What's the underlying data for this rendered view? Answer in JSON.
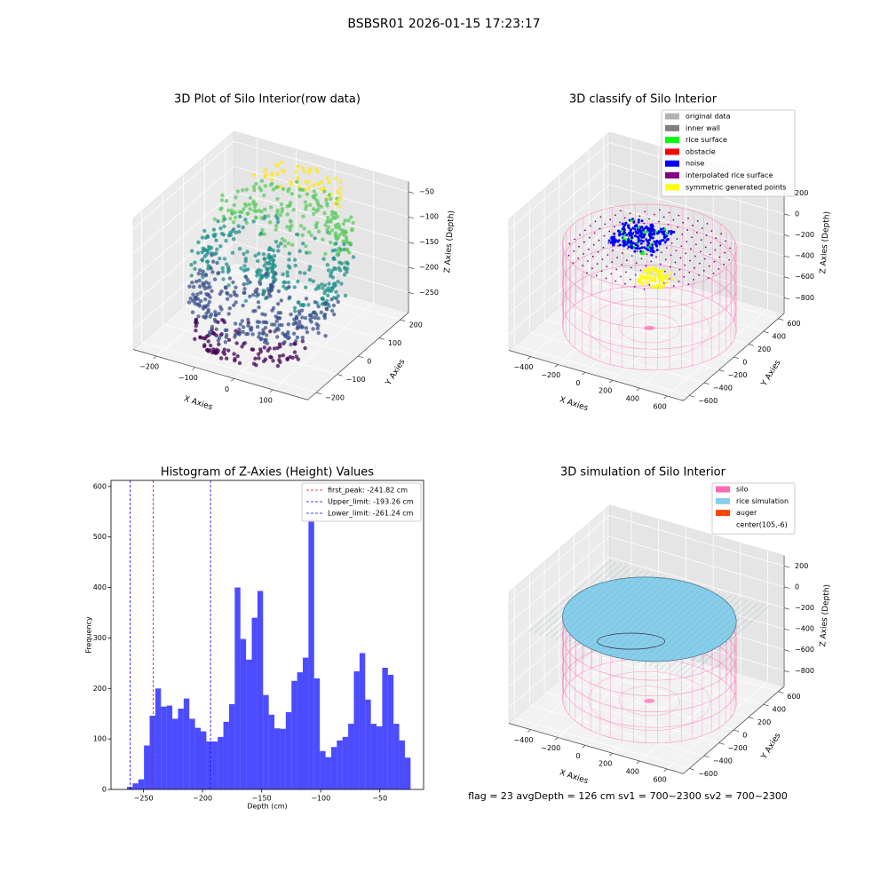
{
  "title": "BSBSR01 2026-01-15 17:23:17",
  "footer": "flag = 23  avgDepth = 126 cm  sv1 = 700~2300  sv2 = 700~2300",
  "chart_data": [
    {
      "type": "scatter3d",
      "title": "3D Plot of Silo Interior(row data)",
      "xlabel": "X Axies",
      "ylabel": "Y Axies",
      "zlabel": "Z Axies (Depth)",
      "xlim": [
        -260,
        190
      ],
      "ylim": [
        -240,
        240
      ],
      "zlim": [
        -290,
        -30
      ],
      "xticks": [
        {
          "value": -200,
          "label": "−200"
        },
        {
          "value": -100,
          "label": "−100"
        },
        0,
        100
      ],
      "yticks": [
        {
          "value": -200,
          "label": "−200"
        },
        {
          "value": -100,
          "label": "−100"
        },
        0,
        100,
        200
      ],
      "zticks": [
        {
          "value": -250,
          "label": "−250"
        },
        {
          "value": -200,
          "label": "−200"
        },
        {
          "value": -150,
          "label": "−150"
        },
        {
          "value": -100,
          "label": "−100"
        },
        {
          "value": -50,
          "label": "−50"
        }
      ]
    },
    {
      "type": "scatter3d",
      "title": "3D classify of Silo Interior",
      "xlabel": "X Axies",
      "ylabel": "Y Axies",
      "zlabel": "Z Axies (Depth)",
      "xlim": [
        -560,
        720
      ],
      "ylim": [
        -680,
        680
      ],
      "zlim": [
        -950,
        300
      ],
      "xticks": [
        {
          "value": -400,
          "label": "−400"
        },
        {
          "value": -200,
          "label": "−200"
        },
        0,
        200,
        400,
        600
      ],
      "yticks": [
        {
          "value": -600,
          "label": "−600"
        },
        {
          "value": -400,
          "label": "−400"
        },
        {
          "value": -200,
          "label": "−200"
        },
        0,
        200,
        400,
        600
      ],
      "zticks": [
        {
          "value": -800,
          "label": "−800"
        },
        {
          "value": -600,
          "label": "−600"
        },
        {
          "value": -400,
          "label": "−400"
        },
        {
          "value": -200,
          "label": "−200"
        },
        0,
        200
      ],
      "legend": [
        {
          "name": "original data",
          "color": "#b3b3b3"
        },
        {
          "name": "inner wall",
          "color": "#808080"
        },
        {
          "name": "rice surface",
          "color": "#00ff00"
        },
        {
          "name": "obstacle",
          "color": "#ff0000"
        },
        {
          "name": "noise",
          "color": "#0000ff"
        },
        {
          "name": "interpolated rice surface",
          "color": "#800080"
        },
        {
          "name": "symmetric generated points",
          "color": "#ffff00"
        }
      ]
    },
    {
      "type": "histogram",
      "title": "Histogram of Z-Axies (Height) Values",
      "xlabel": "Depth (cm)",
      "ylabel": "Frequency",
      "color": "#0000ff",
      "alpha": 0.7,
      "bins": [
        -264.0,
        -259.2,
        -254.4,
        -249.6,
        -244.8,
        -240.0,
        -235.2,
        -230.4,
        -225.6,
        -220.8,
        -216.0,
        -211.2,
        -206.4,
        -201.6,
        -196.8,
        -192.0,
        -187.2,
        -182.4,
        -177.6,
        -172.8,
        -168.0,
        -163.2,
        -158.4,
        -153.6,
        -148.8,
        -144.0,
        -139.2,
        -134.4,
        -129.6,
        -124.8,
        -120.0,
        -115.2,
        -110.4,
        -105.6,
        -100.8,
        -96.0,
        -91.2,
        -86.4,
        -81.6,
        -76.8,
        -72.0,
        -67.2,
        -62.4,
        -57.6,
        -52.8,
        -48.0,
        -43.2,
        -38.4,
        -33.6,
        -28.8,
        -24.0
      ],
      "counts": [
        5,
        12,
        20,
        87,
        146,
        200,
        164,
        166,
        140,
        160,
        180,
        140,
        122,
        115,
        95,
        95,
        104,
        134,
        169,
        400,
        298,
        257,
        340,
        393,
        187,
        148,
        121,
        120,
        153,
        215,
        232,
        261,
        535,
        220,
        76,
        64,
        84,
        97,
        104,
        130,
        234,
        270,
        178,
        130,
        125,
        241,
        227,
        130,
        97,
        63
      ],
      "xlim": [
        -277.5,
        -13
      ],
      "ylim": [
        0,
        612
      ],
      "xticks": [
        {
          "value": -250,
          "label": "−250"
        },
        {
          "value": -200,
          "label": "−200"
        },
        {
          "value": -150,
          "label": "−150"
        },
        {
          "value": -100,
          "label": "−100"
        },
        {
          "value": -50,
          "label": "−50"
        }
      ],
      "yticks": [
        0,
        100,
        200,
        300,
        400,
        500,
        600
      ],
      "lines": [
        {
          "name": "first_peak: -241.82 cm",
          "value": -241.82,
          "color": "#ff0000"
        },
        {
          "name": "Upper_limit: -193.26 cm",
          "value": -193.26,
          "color": "#0000ff"
        },
        {
          "name": "Lower_limit: -261.24 cm",
          "value": -261.24,
          "color": "#0000ff"
        }
      ]
    },
    {
      "type": "scatter3d",
      "title": "3D simulation of Silo Interior",
      "xlabel": "X Axies",
      "ylabel": "Y Axies",
      "zlabel": "Z Axies (Depth)",
      "xlim": [
        -560,
        720
      ],
      "ylim": [
        -680,
        680
      ],
      "zlim": [
        -950,
        300
      ],
      "xticks": [
        {
          "value": -400,
          "label": "−400"
        },
        {
          "value": -200,
          "label": "−200"
        },
        0,
        200,
        400,
        600
      ],
      "yticks": [
        {
          "value": -600,
          "label": "−600"
        },
        {
          "value": -400,
          "label": "−400"
        },
        {
          "value": -200,
          "label": "−200"
        },
        0,
        200,
        400,
        600
      ],
      "zticks": [
        {
          "value": -800,
          "label": "−800"
        },
        {
          "value": -600,
          "label": "−600"
        },
        {
          "value": -400,
          "label": "−400"
        },
        {
          "value": -200,
          "label": "−200"
        },
        0,
        200
      ],
      "legend": [
        {
          "name": "silo",
          "color": "#ff69b4"
        },
        {
          "name": "rice simulation",
          "color": "#87ceeb"
        },
        {
          "name": "auger",
          "color": "#ff4500"
        },
        {
          "name": "center(105,-6)",
          "color": "#ffffff"
        }
      ]
    }
  ]
}
